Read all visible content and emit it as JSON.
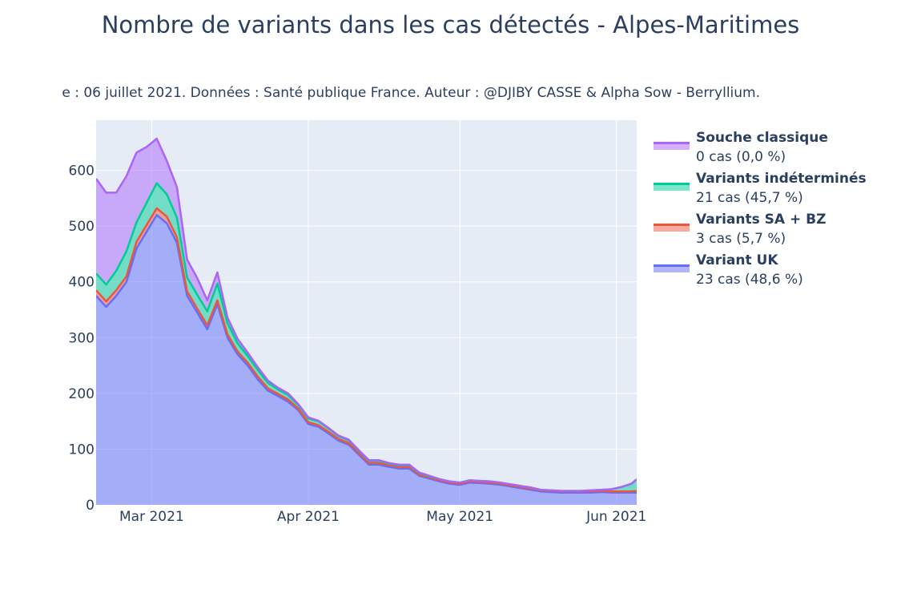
{
  "title": "Nombre de variants dans les cas détectés - Alpes-Maritimes",
  "subtitle": "e : 06 juillet 2021. Données : Santé publique France. Auteur : @DJIBY CASSE & Alpha Sow - Berryllium.",
  "colors": {
    "background": "#e5ecf6",
    "grid": "#ffffff",
    "text": "#2a3f5f"
  },
  "chart_data": {
    "type": "area",
    "stacked": true,
    "xlim": [
      "2021-02-18",
      "2021-06-05"
    ],
    "ylim": [
      0,
      690
    ],
    "grid": true,
    "legend_position": "right",
    "x_ticks": [
      {
        "date": "2021-03-01",
        "label": "Mar 2021"
      },
      {
        "date": "2021-04-01",
        "label": "Apr 2021"
      },
      {
        "date": "2021-05-01",
        "label": "May 2021"
      },
      {
        "date": "2021-06-01",
        "label": "Jun 2021"
      }
    ],
    "y_ticks": [
      0,
      100,
      200,
      300,
      400,
      500,
      600
    ],
    "x": [
      "2021-02-18",
      "2021-02-20",
      "2021-02-22",
      "2021-02-24",
      "2021-02-26",
      "2021-02-28",
      "2021-03-02",
      "2021-03-04",
      "2021-03-06",
      "2021-03-08",
      "2021-03-10",
      "2021-03-12",
      "2021-03-14",
      "2021-03-16",
      "2021-03-18",
      "2021-03-20",
      "2021-03-22",
      "2021-03-24",
      "2021-03-26",
      "2021-03-28",
      "2021-03-30",
      "2021-04-01",
      "2021-04-03",
      "2021-04-05",
      "2021-04-07",
      "2021-04-09",
      "2021-04-11",
      "2021-04-13",
      "2021-04-15",
      "2021-04-17",
      "2021-04-19",
      "2021-04-21",
      "2021-04-23",
      "2021-04-25",
      "2021-04-27",
      "2021-04-29",
      "2021-05-01",
      "2021-05-03",
      "2021-05-05",
      "2021-05-07",
      "2021-05-09",
      "2021-05-11",
      "2021-05-13",
      "2021-05-15",
      "2021-05-17",
      "2021-05-19",
      "2021-05-21",
      "2021-05-23",
      "2021-05-25",
      "2021-05-27",
      "2021-05-29",
      "2021-05-31",
      "2021-06-02",
      "2021-06-04",
      "2021-06-05"
    ],
    "series": [
      {
        "name": "Variant UK",
        "color": "#636efa",
        "legend_value": "23 cas (48,6 %)",
        "values": [
          375,
          355,
          375,
          400,
          460,
          490,
          520,
          505,
          470,
          375,
          345,
          315,
          360,
          300,
          270,
          250,
          225,
          205,
          195,
          185,
          170,
          145,
          140,
          128,
          115,
          108,
          90,
          72,
          72,
          68,
          65,
          65,
          52,
          47,
          42,
          38,
          36,
          40,
          39,
          38,
          36,
          33,
          30,
          27,
          24,
          23,
          22,
          22,
          22,
          22,
          23,
          22,
          22,
          22,
          22
        ]
      },
      {
        "name": "Variants SA + BZ",
        "color": "#ef553b",
        "legend_value": "3 cas (5,7 %)",
        "values": [
          10,
          10,
          10,
          10,
          12,
          12,
          12,
          12,
          10,
          8,
          7,
          7,
          7,
          6,
          5,
          5,
          5,
          4,
          4,
          4,
          3,
          3,
          3,
          3,
          3,
          3,
          3,
          3,
          3,
          3,
          3,
          3,
          2,
          2,
          2,
          2,
          2,
          2,
          2,
          2,
          2,
          2,
          2,
          2,
          2,
          2,
          2,
          2,
          2,
          2,
          2,
          2,
          2,
          2,
          3
        ]
      },
      {
        "name": "Variants indéterminés",
        "color": "#00cc96",
        "legend_value": "21 cas (45,7 %)",
        "values": [
          30,
          30,
          35,
          45,
          35,
          40,
          45,
          40,
          35,
          25,
          25,
          25,
          30,
          20,
          15,
          12,
          12,
          10,
          8,
          8,
          6,
          7,
          7,
          6,
          5,
          5,
          4,
          4,
          4,
          3,
          3,
          3,
          3,
          2,
          2,
          2,
          2,
          2,
          2,
          2,
          2,
          2,
          2,
          2,
          1,
          1,
          1,
          1,
          1,
          2,
          2,
          4,
          8,
          14,
          21
        ]
      },
      {
        "name": "Souche classique",
        "color": "#ab63fa",
        "legend_value": "0 cas (0,0 %)",
        "values": [
          170,
          165,
          140,
          135,
          125,
          100,
          80,
          60,
          55,
          32,
          30,
          20,
          20,
          10,
          8,
          6,
          5,
          4,
          3,
          3,
          2,
          2,
          1,
          1,
          1,
          1,
          1,
          1,
          1,
          1,
          1,
          1,
          1,
          1,
          0,
          0,
          0,
          0,
          0,
          0,
          0,
          0,
          0,
          0,
          0,
          0,
          0,
          0,
          0,
          0,
          0,
          0,
          0,
          0,
          0
        ]
      }
    ]
  }
}
